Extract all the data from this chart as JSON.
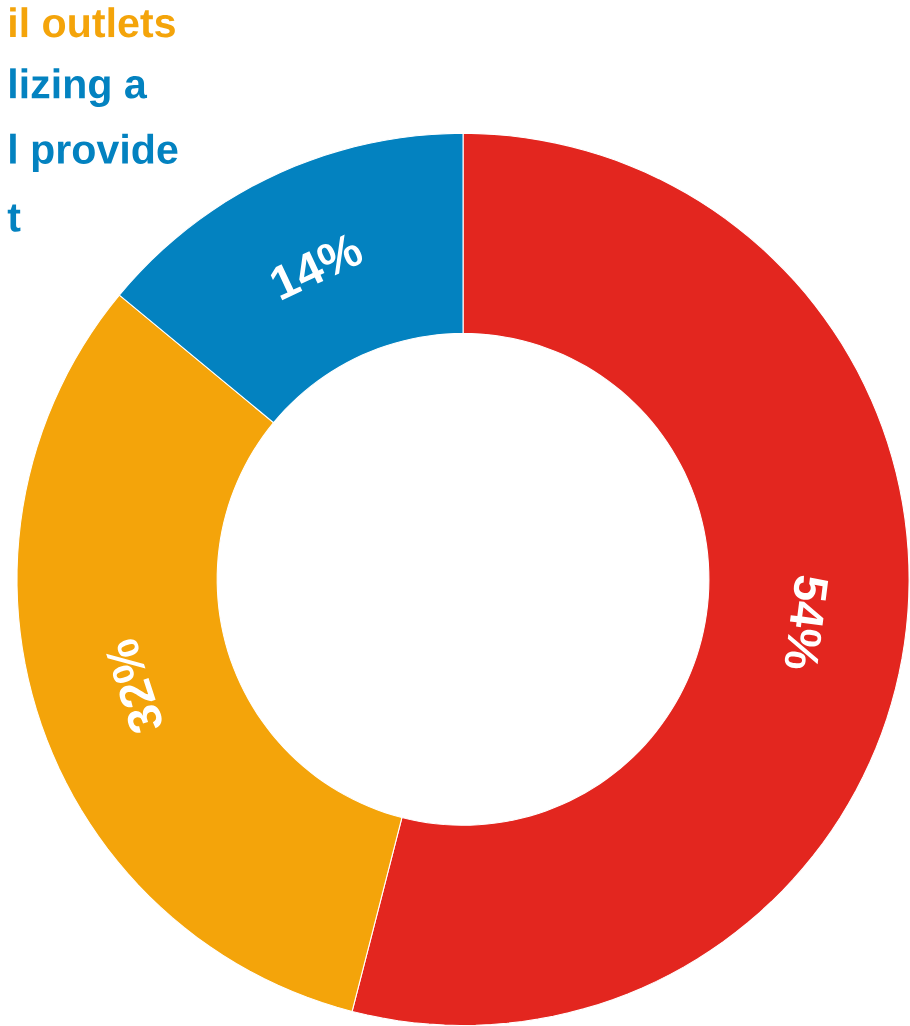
{
  "chart_data": {
    "type": "donut",
    "categories": [
      null,
      null,
      null
    ],
    "values": [
      54,
      32,
      14
    ],
    "colors": [
      "#e3261f",
      "#f4a40a",
      "#0382c0"
    ],
    "value_labels": [
      "54%",
      "32%",
      "14%"
    ],
    "annotations": [
      "il outlets",
      "lizing a",
      "l provide",
      "t"
    ]
  }
}
